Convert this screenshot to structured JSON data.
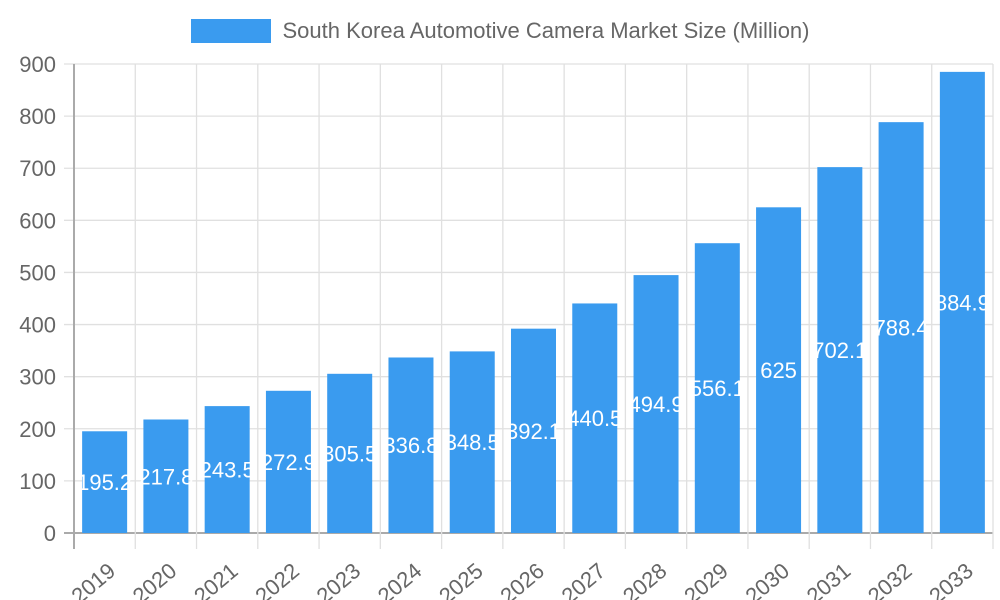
{
  "chart_data": {
    "type": "bar",
    "title": "",
    "legend": [
      "South Korea Automotive Camera Market Size (Million)"
    ],
    "legend_position": "top",
    "xlabel": "",
    "ylabel": "",
    "ylim": [
      0,
      900
    ],
    "yticks": [
      0,
      100,
      200,
      300,
      400,
      500,
      600,
      700,
      800,
      900
    ],
    "grid": true,
    "categories": [
      "2019",
      "2020",
      "2021",
      "2022",
      "2023",
      "2024",
      "2025",
      "2026",
      "2027",
      "2028",
      "2029",
      "2030",
      "2031",
      "2032",
      "2033"
    ],
    "series": [
      {
        "name": "South Korea Automotive Camera Market Size (Million)",
        "color": "#3a9bef",
        "values": [
          195.2,
          217.8,
          243.5,
          272.9,
          305.5,
          336.8,
          348.5,
          392.1,
          440.5,
          494.9,
          556.1,
          625,
          702.1,
          788.4,
          884.9
        ]
      }
    ]
  },
  "legend": {
    "label": "South Korea Automotive Camera Market Size (Million)",
    "color": "#3a9bef"
  }
}
